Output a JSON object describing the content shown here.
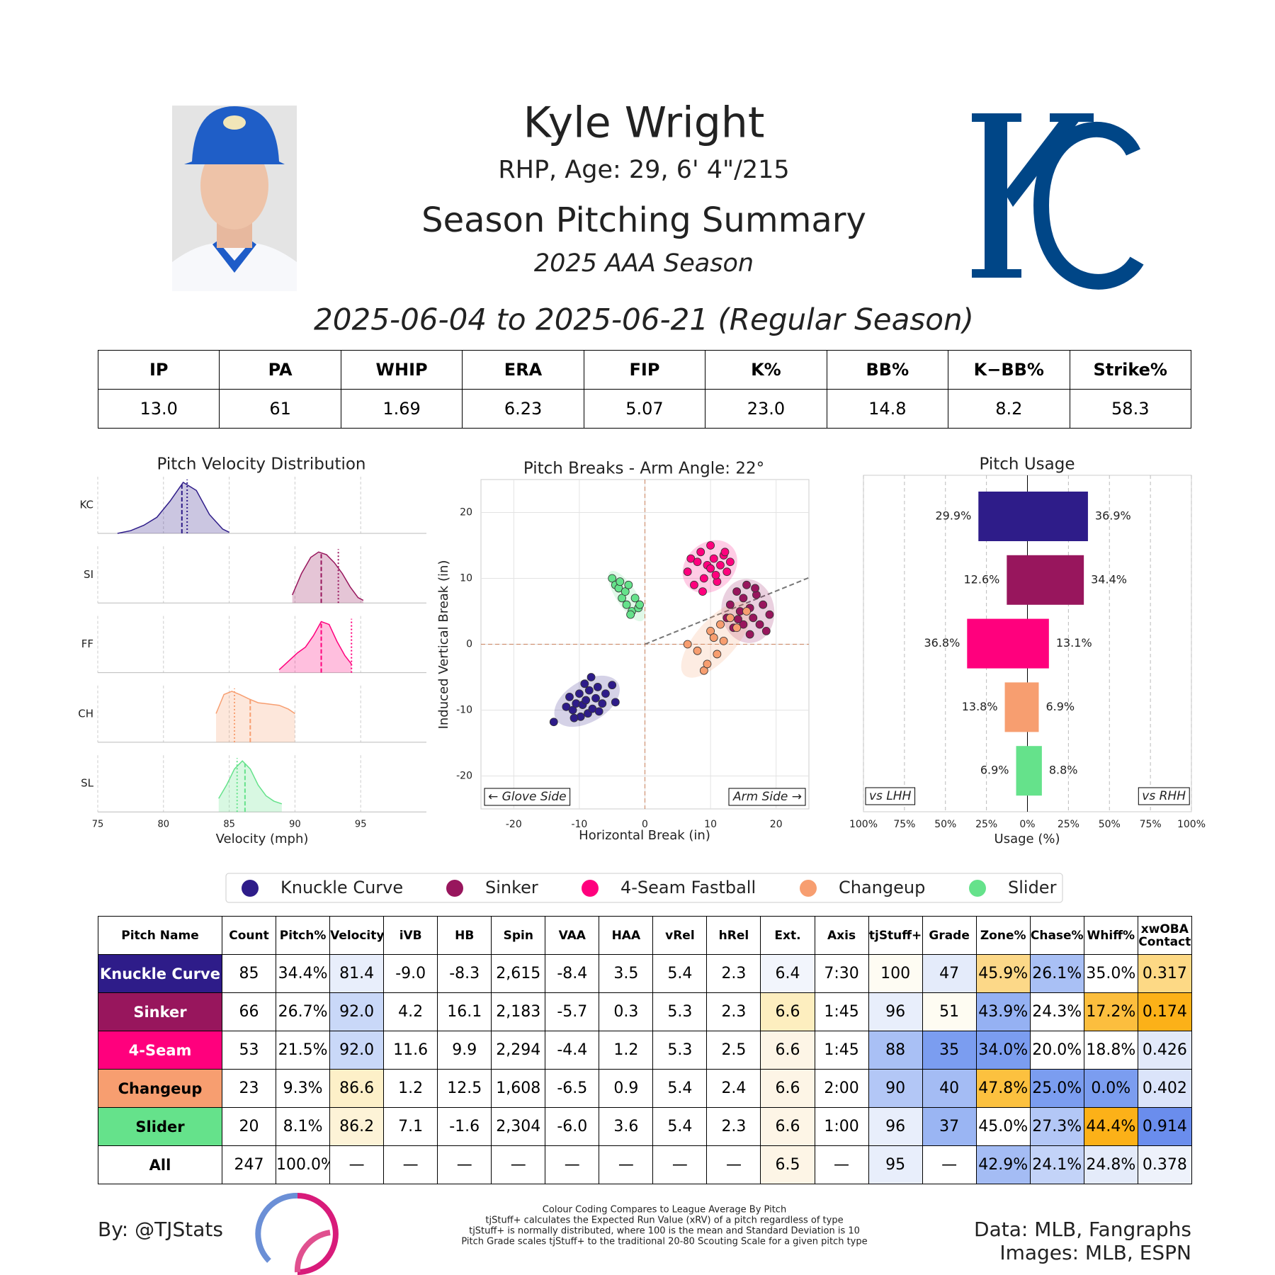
{
  "header": {
    "name": "Kyle Wright",
    "bio": "RHP, Age: 29, 6' 4\"/215",
    "title": "Season Pitching Summary",
    "season": "2025 AAA Season",
    "date_range": "2025-06-04 to 2025-06-21 (Regular Season)"
  },
  "stats": {
    "headers": [
      "IP",
      "PA",
      "WHIP",
      "ERA",
      "FIP",
      "K%",
      "BB%",
      "K−BB%",
      "Strike%"
    ],
    "values": [
      "13.0",
      "61",
      "1.69",
      "6.23",
      "5.07",
      "23.0",
      "14.8",
      "8.2",
      "58.3"
    ]
  },
  "chart_data": [
    {
      "type": "ridgeline",
      "title": "Pitch Velocity Distribution",
      "x_label": "Velocity (mph)",
      "xlim": [
        75,
        100
      ],
      "xticks": [
        75,
        80,
        85,
        90,
        95
      ],
      "grid": true,
      "series": [
        {
          "name": "KC",
          "color": "#2e1c89",
          "x": [
            76.5,
            77.5,
            78.5,
            79.5,
            80.5,
            81.5,
            82.5,
            83.5,
            84.5,
            85
          ],
          "values": [
            0,
            0.05,
            0.15,
            0.3,
            0.6,
            0.95,
            0.8,
            0.35,
            0.08,
            0.02
          ],
          "mean": 81.4,
          "league_mean": 81.8
        },
        {
          "name": "SI",
          "color": "#98165d",
          "x": [
            89.8,
            90.5,
            91.2,
            91.8,
            92.4,
            93,
            93.6,
            94.2,
            94.8,
            95.2
          ],
          "values": [
            0.15,
            0.55,
            0.85,
            0.95,
            0.9,
            0.75,
            0.55,
            0.3,
            0.1,
            0.05
          ],
          "mean": 92.0,
          "league_mean": 93.3
        },
        {
          "name": "FF",
          "color": "#ff007d",
          "x": [
            88.8,
            89.5,
            90.2,
            90.8,
            91.4,
            92,
            92.6,
            93.2,
            93.8,
            94.3
          ],
          "values": [
            0.05,
            0.2,
            0.35,
            0.45,
            0.65,
            0.9,
            0.85,
            0.55,
            0.3,
            0.15
          ],
          "mean": 92.0,
          "league_mean": 94.3
        },
        {
          "name": "CH",
          "color": "#f79e70",
          "x": [
            84,
            84.6,
            85.2,
            85.8,
            86.5,
            87.2,
            88,
            88.8,
            89.5,
            90
          ],
          "values": [
            0.45,
            0.75,
            0.8,
            0.75,
            0.68,
            0.62,
            0.6,
            0.58,
            0.52,
            0.45
          ],
          "mean": 86.6,
          "league_mean": 85.4
        },
        {
          "name": "SL",
          "color": "#65e28b",
          "x": [
            84.2,
            84.8,
            85.4,
            86,
            86.6,
            87.2,
            87.8,
            88.4,
            89
          ],
          "values": [
            0.25,
            0.5,
            0.8,
            0.95,
            0.8,
            0.5,
            0.3,
            0.2,
            0.15
          ],
          "mean": 86.2,
          "league_mean": 85.6
        }
      ]
    },
    {
      "type": "scatter",
      "title": "Pitch Breaks - Arm Angle: 22°",
      "arm_angle": 22,
      "x_label": "Horizontal Break (in)",
      "y_label": "Induced Vertical Break (in)",
      "xlim": [
        -25,
        25
      ],
      "ylim": [
        -25,
        25
      ],
      "xticks": [
        -20,
        -10,
        0,
        10,
        20
      ],
      "yticks": [
        -20,
        -10,
        0,
        10,
        20
      ],
      "grid": true,
      "annotations": [
        "← Glove Side",
        "Arm Side →"
      ],
      "series": [
        {
          "color": "#2e1c89",
          "x": [
            -13.9,
            -12,
            -11.5,
            -11,
            -10.5,
            -10,
            -9.8,
            -9.5,
            -9,
            -8.7,
            -8.5,
            -8,
            -7.5,
            -7.2,
            -7,
            -6.5,
            -6,
            -5,
            -4.5,
            -10.8,
            -9.2,
            -8.2
          ],
          "y": [
            -11.8,
            -9.5,
            -8,
            -10,
            -9,
            -7.5,
            -11,
            -9.2,
            -8.5,
            -10.5,
            -7,
            -9.8,
            -8.2,
            -6.5,
            -10.2,
            -9,
            -7.5,
            -6.2,
            -8.8,
            -11.2,
            -6,
            -5
          ]
        },
        {
          "color": "#98165d",
          "x": [
            12.5,
            13,
            13.5,
            14,
            14.5,
            15,
            15,
            15.5,
            16,
            16,
            16.5,
            17,
            17.5,
            18,
            18.5,
            19,
            14.2,
            16.8
          ],
          "y": [
            4,
            6,
            2.5,
            8,
            5,
            3,
            7,
            9,
            1.5,
            5.5,
            4,
            7.5,
            3,
            6,
            2,
            4.5,
            3.8,
            8.5
          ]
        },
        {
          "color": "#ff007d",
          "x": [
            6.5,
            7,
            7.5,
            8,
            8.5,
            9,
            9.5,
            10,
            10,
            10.5,
            11,
            11.5,
            12,
            12.5,
            13,
            8.8,
            10.8,
            12.2
          ],
          "y": [
            11,
            13,
            9,
            12.5,
            14,
            10,
            12,
            15,
            11.5,
            13,
            9.5,
            12,
            13.5,
            11,
            12.5,
            8,
            10.5,
            14
          ]
        },
        {
          "color": "#f79e70",
          "x": [
            6.5,
            8,
            9,
            9.5,
            10,
            10.5,
            11,
            11.5,
            12,
            13,
            14,
            15.5
          ],
          "y": [
            0,
            -1,
            -4,
            -3,
            2,
            1,
            -1.5,
            3,
            0.5,
            4,
            2.5,
            5
          ]
        },
        {
          "color": "#65e28b",
          "x": [
            -5,
            -4.5,
            -4,
            -3.8,
            -3.5,
            -3,
            -2.8,
            -2.5,
            -2,
            -1.5,
            -1,
            -0.8,
            -2.2
          ],
          "y": [
            10,
            9,
            8.5,
            9.5,
            7,
            8,
            6,
            9,
            5,
            7,
            5.5,
            6,
            4.5
          ]
        }
      ]
    },
    {
      "type": "diverging-bar",
      "title": "Pitch Usage",
      "x_label": "Usage (%)",
      "xlim": [
        -100,
        100
      ],
      "xticks": [
        {
          "value": -100,
          "label": "100%"
        },
        {
          "value": -75,
          "label": "75%"
        },
        {
          "value": -50,
          "label": "50%"
        },
        {
          "value": -25,
          "label": "25%"
        },
        {
          "value": 0,
          "label": "0%"
        },
        {
          "value": 25,
          "label": "25%"
        },
        {
          "value": 50,
          "label": "50%"
        },
        {
          "value": 75,
          "label": "75%"
        },
        {
          "value": 100,
          "label": "100%"
        }
      ],
      "grid": true,
      "colors": [
        "#2e1c89",
        "#98165d",
        "#ff007d",
        "#f79e70",
        "#65e28b"
      ],
      "series": [
        {
          "name": "vs LHH",
          "side": "left",
          "values": [
            29.9,
            12.6,
            36.8,
            13.8,
            6.9
          ],
          "value_labels": [
            "29.9%",
            "12.6%",
            "36.8%",
            "13.8%",
            "6.9%"
          ]
        },
        {
          "name": "vs RHH",
          "side": "right",
          "values": [
            36.9,
            34.4,
            13.1,
            6.9,
            8.8
          ],
          "value_labels": [
            "36.9%",
            "34.4%",
            "13.1%",
            "6.9%",
            "8.8%"
          ]
        }
      ]
    }
  ],
  "legend": {
    "items": [
      {
        "name": "Knuckle Curve",
        "color": "#2e1c89"
      },
      {
        "name": "Sinker",
        "color": "#98165d"
      },
      {
        "name": "4-Seam Fastball",
        "color": "#ff007d"
      },
      {
        "name": "Changeup",
        "color": "#f79e70"
      },
      {
        "name": "Slider",
        "color": "#65e28b"
      }
    ]
  },
  "table": {
    "headers": [
      "Pitch Name",
      "Count",
      "Pitch%",
      "Velocity",
      "iVB",
      "HB",
      "Spin",
      "VAA",
      "HAA",
      "vRel",
      "hRel",
      "Ext.",
      "Axis",
      "tjStuff+",
      "Grade",
      "Zone%",
      "Chase%",
      "Whiff%",
      "xwOBA Contact"
    ],
    "rows": [
      [
        "Knuckle Curve",
        "85",
        "34.4%",
        "81.4",
        "-9.0",
        "-8.3",
        "2,615",
        "-8.4",
        "3.5",
        "5.4",
        "2.3",
        "6.4",
        "7:30",
        "100",
        "47",
        "45.9%",
        "26.1%",
        "35.0%",
        "0.317"
      ],
      [
        "Sinker",
        "66",
        "26.7%",
        "92.0",
        "4.2",
        "16.1",
        "2,183",
        "-5.7",
        "0.3",
        "5.3",
        "2.3",
        "6.6",
        "1:45",
        "96",
        "51",
        "43.9%",
        "24.3%",
        "17.2%",
        "0.174"
      ],
      [
        "4-Seam",
        "53",
        "21.5%",
        "92.0",
        "11.6",
        "9.9",
        "2,294",
        "-4.4",
        "1.2",
        "5.3",
        "2.5",
        "6.6",
        "1:45",
        "88",
        "35",
        "34.0%",
        "20.0%",
        "18.8%",
        "0.426"
      ],
      [
        "Changeup",
        "23",
        "9.3%",
        "86.6",
        "1.2",
        "12.5",
        "1,608",
        "-6.5",
        "0.9",
        "5.4",
        "2.4",
        "6.6",
        "2:00",
        "90",
        "40",
        "47.8%",
        "25.0%",
        "0.0%",
        "0.402"
      ],
      [
        "Slider",
        "20",
        "8.1%",
        "86.2",
        "7.1",
        "-1.6",
        "2,304",
        "-6.0",
        "3.6",
        "5.4",
        "2.3",
        "6.6",
        "1:00",
        "96",
        "37",
        "45.0%",
        "27.3%",
        "44.4%",
        "0.914"
      ],
      [
        "All",
        "247",
        "100.0%",
        "—",
        "—",
        "—",
        "—",
        "—",
        "—",
        "—",
        "—",
        "6.5",
        "—",
        "95",
        "—",
        "42.9%",
        "24.1%",
        "24.8%",
        "0.378"
      ]
    ],
    "name_text_colors": [
      "#ffffff",
      "#ffffff",
      "#ffffff",
      "#000000",
      "#000000",
      "#000000"
    ],
    "cell_colors": [
      [
        "#2e1c89",
        null,
        null,
        "#e8eefb",
        null,
        null,
        null,
        null,
        null,
        null,
        null,
        "#f2f5fc",
        null,
        "#fefcf3",
        "#e4ebfa",
        "#fcd888",
        "#a9c0f5",
        null,
        "#fdd985"
      ],
      [
        "#98165d",
        null,
        null,
        "#c9d8f8",
        null,
        null,
        null,
        null,
        null,
        null,
        null,
        "#fdeebf",
        null,
        "#e8eefb",
        "#fefcf2",
        "#95b1f3",
        null,
        "#fcbe3e",
        "#fcb118"
      ],
      [
        "#ff007d",
        null,
        null,
        "#c9d8f8",
        null,
        null,
        null,
        null,
        null,
        null,
        null,
        "#fdf5e6",
        null,
        "#a9c0f5",
        "#7b9df0",
        "#7b9df0",
        null,
        null,
        "#e2e9fa"
      ],
      [
        "#f79e70",
        null,
        null,
        "#fdf0c8",
        null,
        null,
        null,
        null,
        null,
        null,
        null,
        "#fdf5e6",
        null,
        "#b3c7f6",
        "#a4bcf4",
        "#fcc13f",
        "#7b9df0",
        "#7b9df0",
        "#dbe4fa"
      ],
      [
        "#65e28b",
        null,
        null,
        "#fdf3d7",
        null,
        null,
        null,
        null,
        null,
        null,
        null,
        "#fdf5e6",
        null,
        "#e8eefb",
        "#9ab5f3",
        null,
        "#b3c7f6",
        "#fcb118",
        "#6a8ded"
      ],
      [
        null,
        null,
        null,
        null,
        null,
        null,
        null,
        null,
        null,
        null,
        null,
        "#fdf5e6",
        null,
        "#e8eefb",
        null,
        "#a4bcf4",
        "#c3d3f8",
        "#e4ebfa",
        "#eef2fb"
      ]
    ]
  },
  "footer": {
    "credit": "By: @TJStats",
    "notes": [
      "Colour Coding Compares to League Average By Pitch",
      "tjStuff+ calculates the Expected Run Value (xRV) of a pitch regardless of type",
      "tjStuff+ is normally distributed, where 100 is the mean and Standard Deviation is 10",
      "Pitch Grade scales tjStuff+ to the traditional 20-80 Scouting Scale for a given pitch type"
    ],
    "sources": [
      "Data: MLB, Fangraphs",
      "Images: MLB, ESPN"
    ]
  }
}
